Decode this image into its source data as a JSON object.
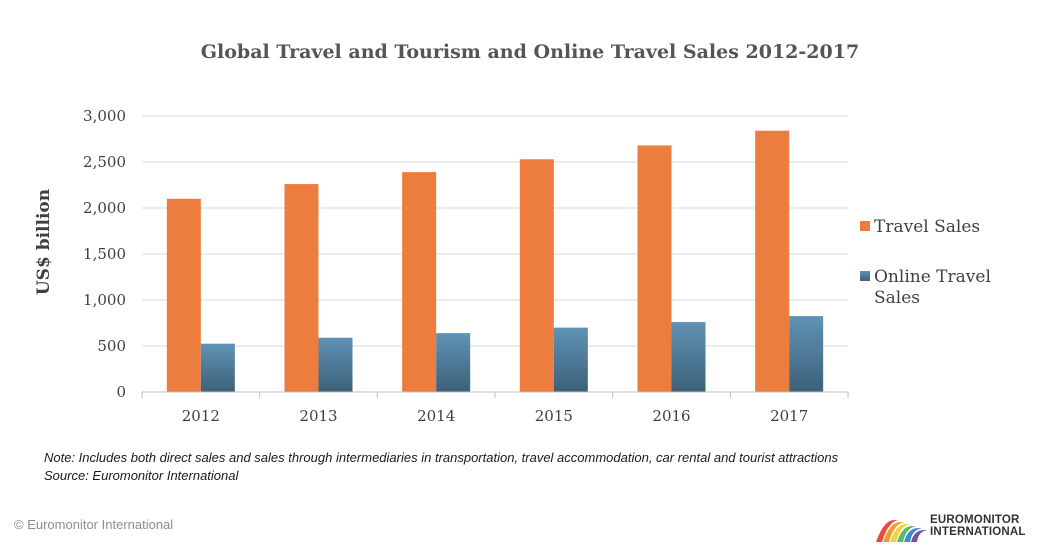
{
  "chart_data": {
    "type": "bar",
    "title": "Global Travel and Tourism and Online Travel Sales 2012-2017",
    "xlabel": "",
    "ylabel": "US$ billion",
    "categories": [
      "2012",
      "2013",
      "2014",
      "2015",
      "2016",
      "2017"
    ],
    "ylim": [
      0,
      3000
    ],
    "yticks": [
      "0",
      "500",
      "1,000",
      "1,500",
      "2,000",
      "2,500",
      "3,000"
    ],
    "ytick_values": [
      0,
      500,
      1000,
      1500,
      2000,
      2500,
      3000
    ],
    "grid": true,
    "legend_position": "right",
    "series": [
      {
        "name": "Travel Sales",
        "values": [
          2100,
          2260,
          2390,
          2530,
          2680,
          2840
        ],
        "color": "#ED7D3F"
      },
      {
        "name": "Online Travel Sales",
        "legend_lines": [
          "Online Travel",
          "Sales"
        ],
        "values": [
          525,
          590,
          640,
          700,
          760,
          825
        ],
        "color": "#4F7F9E"
      }
    ]
  },
  "footer": {
    "note": "Note: Includes both direct sales and sales through intermediaries in transportation, travel accommodation, car rental and tourist attractions",
    "source": "Source: Euromonitor International",
    "copyright": "© Euromonitor International",
    "logo_line1": "EUROMONITOR",
    "logo_line2": "INTERNATIONAL"
  }
}
